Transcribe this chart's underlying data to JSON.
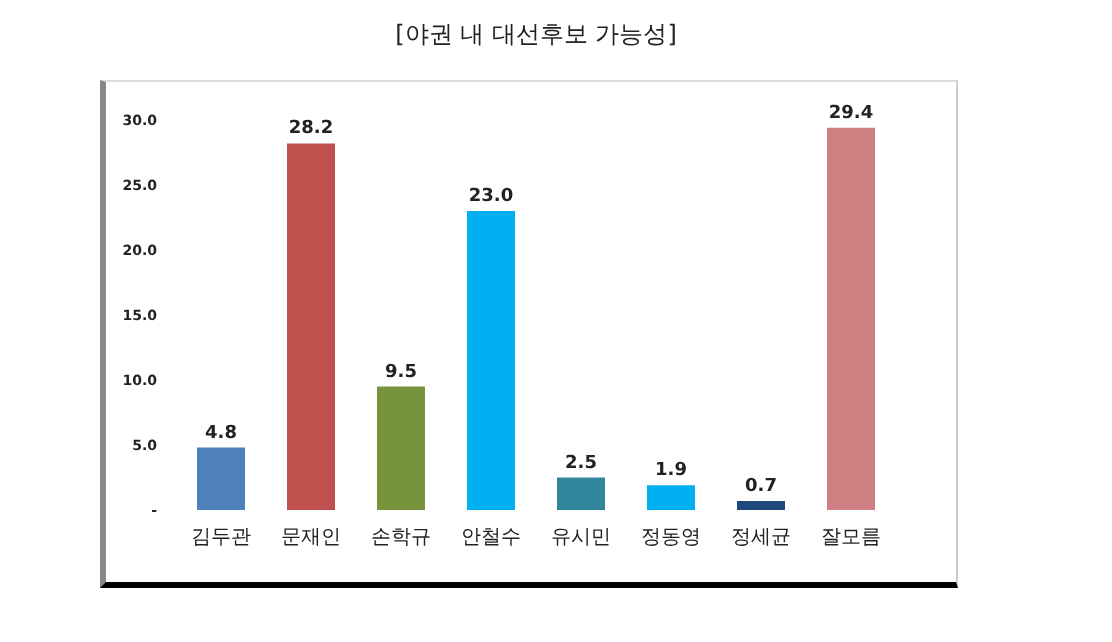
{
  "chart_data": {
    "type": "bar",
    "title": "[야권 내 대선후보 가능성]",
    "categories": [
      "김두관",
      "문재인",
      "손학규",
      "안철수",
      "유시민",
      "정동영",
      "정세균",
      "잘모름"
    ],
    "values": [
      4.8,
      28.2,
      9.5,
      23.0,
      2.5,
      1.9,
      0.7,
      29.4
    ],
    "value_labels": [
      "4.8",
      "28.2",
      "9.5",
      "23.0",
      "2.5",
      "1.9",
      "0.7",
      "29.4"
    ],
    "colors": [
      "#4f81bd",
      "#c0504d",
      "#77933c",
      "#00b0f0",
      "#31859c",
      "#00b0f0",
      "#1f497d",
      "#d08082"
    ],
    "ylim": [
      0,
      30
    ],
    "yticks": [
      {
        "value": 0,
        "label": "-"
      },
      {
        "value": 5,
        "label": "5.0"
      },
      {
        "value": 10,
        "label": "10.0"
      },
      {
        "value": 15,
        "label": "15.0"
      },
      {
        "value": 20,
        "label": "20.0"
      },
      {
        "value": 25,
        "label": "25.0"
      },
      {
        "value": 30,
        "label": "30.0"
      }
    ],
    "grid": false
  }
}
